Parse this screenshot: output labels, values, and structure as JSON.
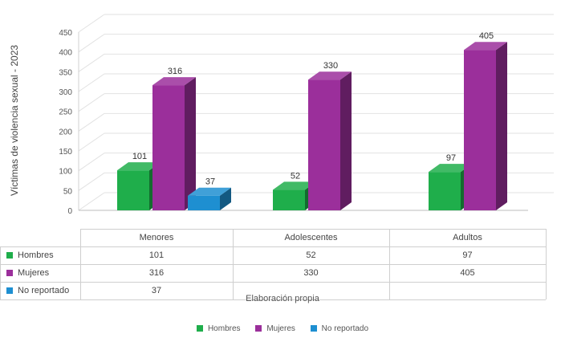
{
  "chart_data": {
    "type": "bar",
    "title": "",
    "ylabel": "Víctimas de violencia sexual - 2023",
    "xlabel": "",
    "ylim": [
      0,
      450
    ],
    "yticks": [
      0,
      50,
      100,
      150,
      200,
      250,
      300,
      350,
      400,
      450
    ],
    "categories": [
      "Menores",
      "Adolescentes",
      "Adultos"
    ],
    "series": [
      {
        "name": "Hombres",
        "values": [
          101,
          52,
          97
        ],
        "labels": [
          "101",
          "52",
          "97"
        ],
        "color": "#1fae4b"
      },
      {
        "name": "Mujeres",
        "values": [
          316,
          330,
          405
        ],
        "labels": [
          "316",
          "330",
          "405"
        ],
        "color": "#9b2f9b"
      },
      {
        "name": "No reportado",
        "values": [
          37,
          null,
          null
        ],
        "labels": [
          "37",
          "",
          ""
        ],
        "color": "#1e8fd1"
      }
    ],
    "grid": true,
    "legend_position": "bottom",
    "source_note": "Elaboración propia"
  }
}
